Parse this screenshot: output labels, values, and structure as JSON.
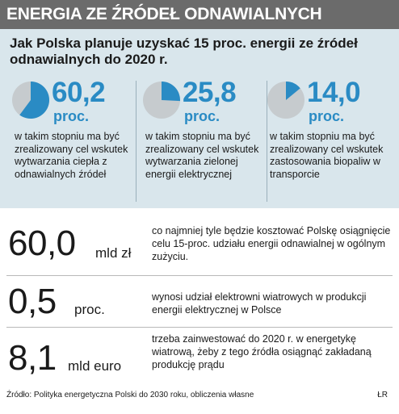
{
  "header": {
    "title": "ENERGIA ZE ŹRÓDEŁ ODNAWIALNYCH"
  },
  "subtitle": "Jak Polska planuje uzyskać 15 proc. energii ze źródeł odnawialnych do 2020 r.",
  "stats": [
    {
      "value": "60,2",
      "unit": "proc.",
      "fraction": 0.602,
      "description": "w takim stopniu ma być zrealizowany cel wskutek wytwarzania ciepła z odnawialnych źródeł"
    },
    {
      "value": "25,8",
      "unit": "proc.",
      "fraction": 0.258,
      "description": "w takim stopniu ma być zrealizowany cel wskutek wytwarzania zielonej energii elektrycznej"
    },
    {
      "value": "14,0",
      "unit": "proc.",
      "fraction": 0.14,
      "description": "w takim stopniu ma być zrealizowany cel wskutek zastosowania biopaliw w transporcie"
    }
  ],
  "rows": [
    {
      "value": "60,0",
      "unit": "mld zł",
      "text": "co najmniej tyle będzie kosztować Polskę osiągnięcie celu 15-proc. udziału energii odnawialnej w ogólnym zużyciu."
    },
    {
      "value": "0,5",
      "unit": "proc.",
      "text": "wynosi udział elektrowni wiatrowych w produkcji energii elektrycznej w Polsce"
    },
    {
      "value": "8,1",
      "unit": "mld euro",
      "text": "trzeba zainwestować do 2020 r. w energetykę wiatrową, żeby z tego źródła osiągnąć zakładaną produkcję prądu"
    }
  ],
  "footer": {
    "source": "Źródło: Polityka energetyczna Polski do 2030 roku, obliczenia własne",
    "credit": "ŁR"
  },
  "colors": {
    "accent": "#2a8bc4",
    "pie_background": "#c6cbce",
    "header_bg": "#6b6b6b",
    "panel_bg": "#d9e6ec"
  }
}
